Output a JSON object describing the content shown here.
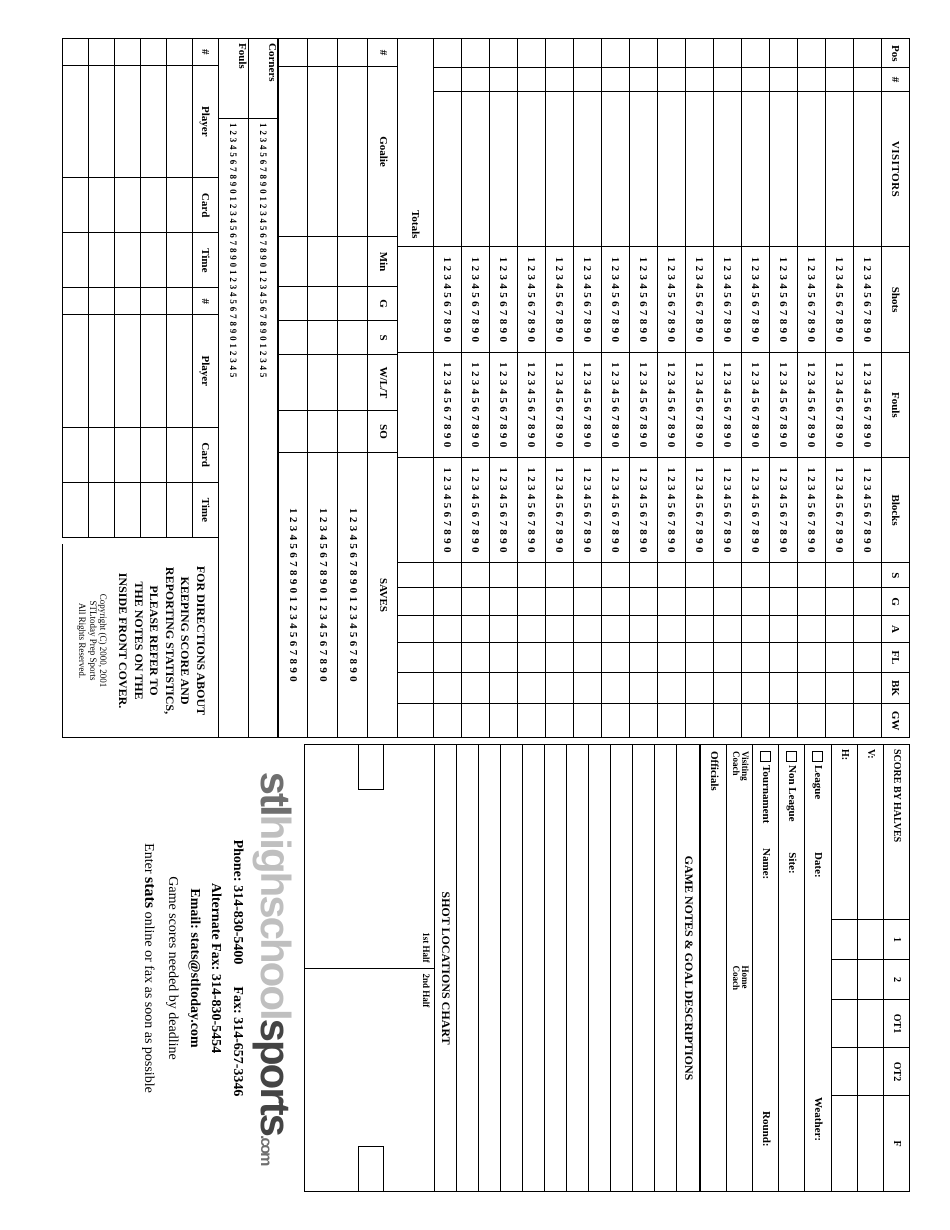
{
  "header": {
    "visitors_label": "VISITORS",
    "columns": {
      "pos": "Pos",
      "num": "#",
      "shots": "Shots",
      "fouls": "Fouls",
      "blocks": "Blocks",
      "s": "S",
      "g": "G",
      "a": "A",
      "fl": "FL",
      "bk": "BK",
      "gw": "GW"
    },
    "tally_short": "1 2 3 4 5 6 7 8 9 0",
    "totals_label": "Totals"
  },
  "goalie": {
    "columns": {
      "num": "#",
      "goalie": "Goalie",
      "min": "Min",
      "g": "G",
      "s": "S",
      "wlt": "W/L/T",
      "so": "SO",
      "saves": "SAVES"
    },
    "saves_tally": "1 2 3 4 5 6 7 8 9 0 1 2 3 4 5 6 7 8 9 0"
  },
  "cf": {
    "corners": "Corners",
    "fouls": "Fouls",
    "tally": "1 2 3 4 5 6 7 8 9 0 1 2 3 4 5 6 7 8 9 0 1 2 3 4 5 6 7 8 9 0 1 2 3 4 5"
  },
  "cards": {
    "columns": {
      "num": "#",
      "player": "Player",
      "card": "Card",
      "time": "Time"
    }
  },
  "directions": {
    "line1": "FOR DIRECTIONS ABOUT",
    "line2": "KEEPING SCORE AND",
    "line3": "REPORTING STATISTICS,",
    "line4": "PLEASE REFER TO",
    "line5": "THE NOTES ON THE",
    "line6": "INSIDE FRONT COVER.",
    "copy1": "Copyright (C) 2000, 2001",
    "copy2": "STLtoday Prep Sports",
    "copy3": "All Rights Reserved."
  },
  "score_halves": {
    "title": "SCORE BY HALVES",
    "p1": "1",
    "p2": "2",
    "ot1": "OT1",
    "ot2": "OT2",
    "f": "F",
    "v": "V:",
    "h": "H:"
  },
  "meta": {
    "league": "League",
    "date": "Date:",
    "weather": "Weather:",
    "non_league": "Non League",
    "site": "Site:",
    "tournament": "Tournament",
    "name": "Name:",
    "round": "Round:",
    "visiting_coach": "Visiting\nCoach",
    "home_coach": "Home\nCoach",
    "officials": "Officials"
  },
  "notes": {
    "title": "GAME NOTES & GOAL DESCRIPTIONS"
  },
  "shotloc": {
    "title": "SHOT LOCATIONS CHART",
    "first": "1st Half",
    "second": "2nd Half"
  },
  "logo": {
    "p1": "stl",
    "p2": "highschool",
    "p3": "sports",
    "suffix": ".com"
  },
  "contact": {
    "phone_lbl": "Phone: ",
    "phone": "314-830-5400",
    "fax_lbl": "Fax: ",
    "fax": "314-657-3346",
    "altfax_lbl": "Alternate Fax: ",
    "altfax": "314-830-5454",
    "email_lbl": "Email: ",
    "email": "stats@stltoday.com",
    "deadline": "Game scores needed by deadline",
    "enter_pre": "Enter ",
    "enter_stats": "stats",
    "enter_post": " online or fax as soon as possible"
  }
}
